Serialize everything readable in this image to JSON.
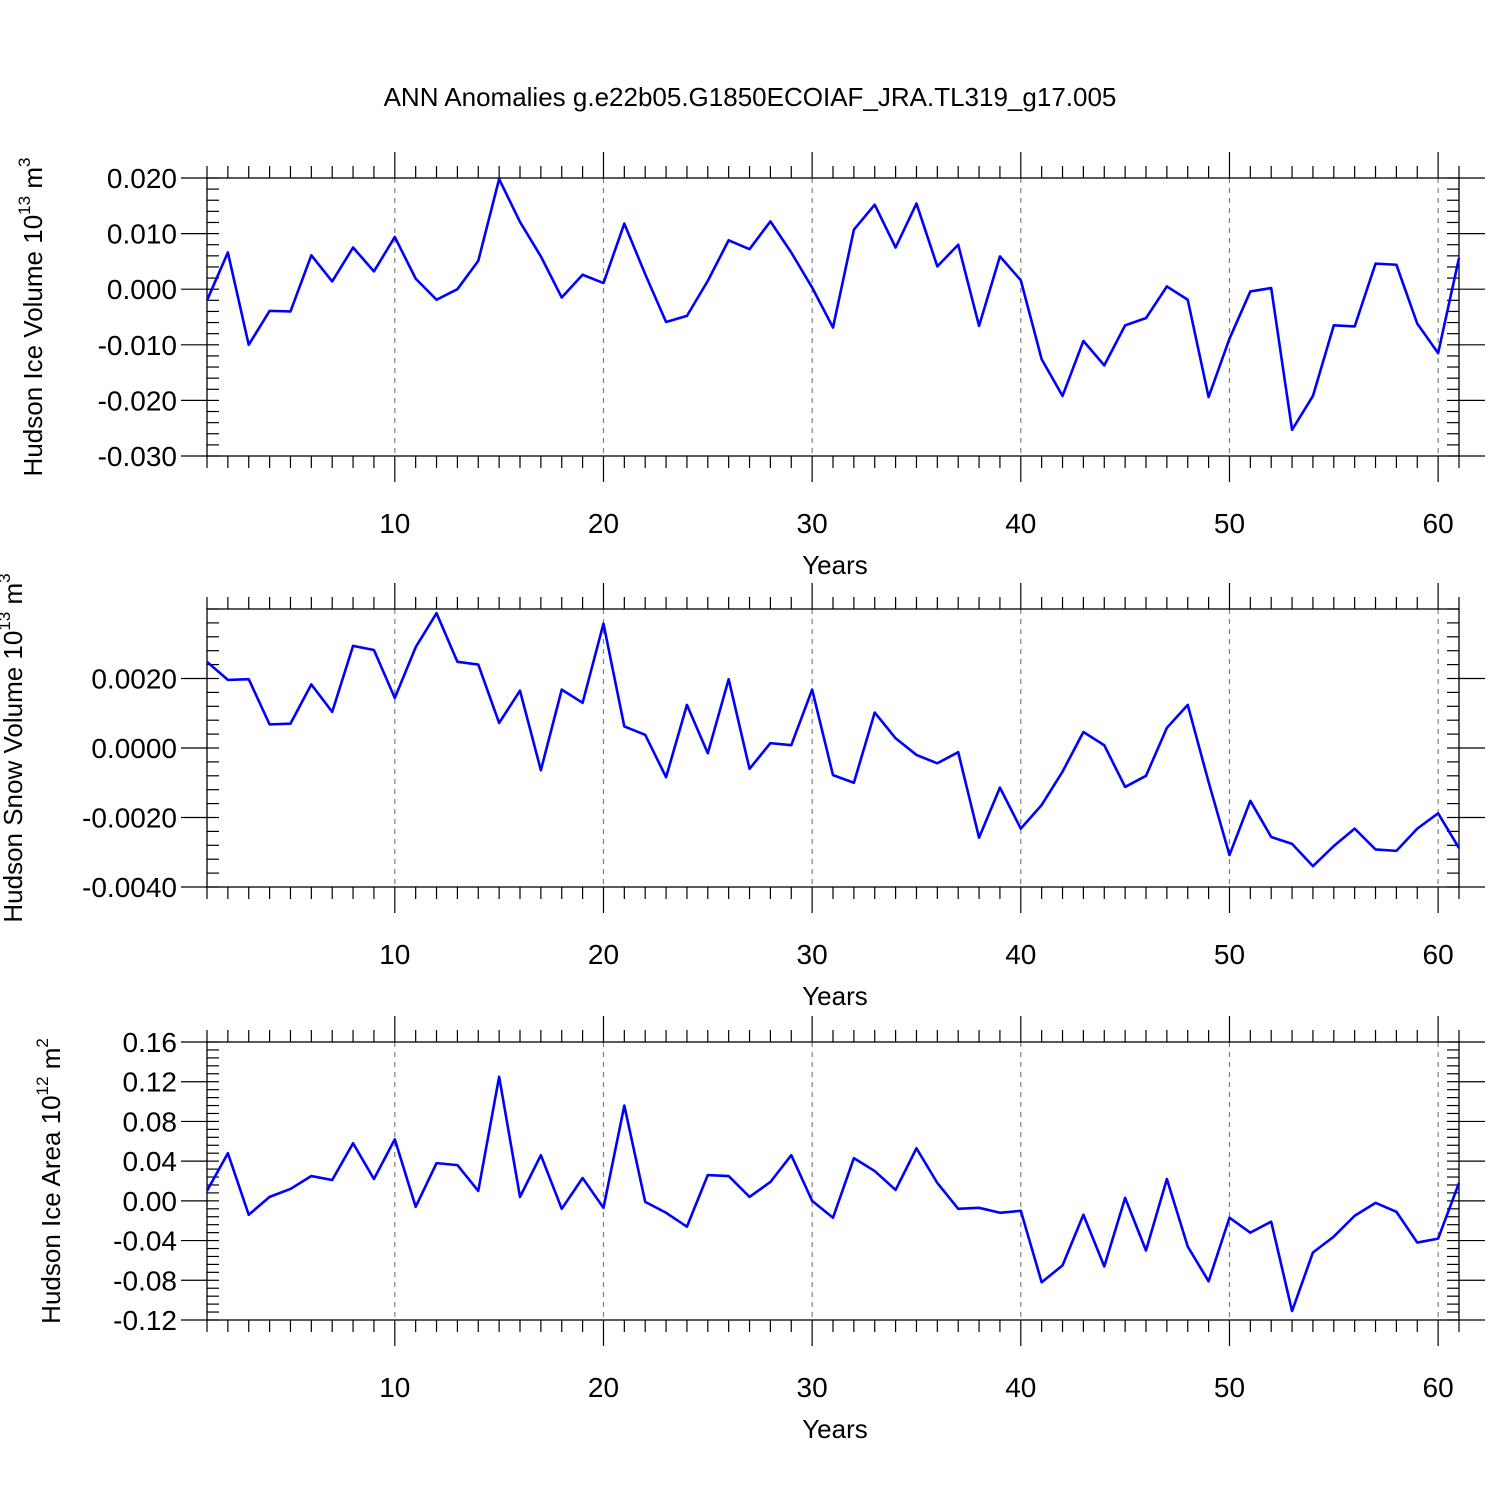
{
  "chart_data": [
    {
      "type": "line",
      "title": "ANN Anomalies g.e22b05.G1850ECOIAF_JRA.TL319_g17.005",
      "xlabel": "Years",
      "ylabel": "Hudson Ice Volume 10",
      "ylabel_exp": "13",
      "ylabel_unit": " m",
      "ylabel_unit_exp": "3",
      "xlim": [
        1,
        61
      ],
      "ylim": [
        -0.03,
        0.02
      ],
      "x_ticks": [
        10,
        20,
        30,
        40,
        50,
        60
      ],
      "x_tick_labels": [
        "10",
        "20",
        "30",
        "40",
        "50",
        "60"
      ],
      "y_ticks": [
        -0.03,
        -0.02,
        -0.01,
        0.0,
        0.01,
        0.02
      ],
      "y_tick_labels": [
        "-0.030",
        "-0.020",
        "-0.010",
        "0.000",
        "0.010",
        "0.020"
      ],
      "y_minor_step": 0.002,
      "grid": "vertical dashed at major x ticks",
      "series": [
        {
          "name": "Hudson Ice Volume",
          "color": "#0000ff",
          "x": [
            1,
            2,
            3,
            4,
            5,
            6,
            7,
            8,
            9,
            10,
            11,
            12,
            13,
            14,
            15,
            16,
            17,
            18,
            19,
            20,
            21,
            22,
            23,
            24,
            25,
            26,
            27,
            28,
            29,
            30,
            31,
            32,
            33,
            34,
            35,
            36,
            37,
            38,
            39,
            40,
            41,
            42,
            43,
            44,
            45,
            46,
            47,
            48,
            49,
            50,
            51,
            52,
            53,
            54,
            55,
            56,
            57,
            58,
            59,
            60,
            61
          ],
          "values": [
            -0.002,
            0.0066,
            -0.01,
            -0.0039,
            -0.004,
            0.0061,
            0.0014,
            0.0075,
            0.0032,
            0.0094,
            0.0019,
            -0.0019,
            0.0,
            0.0051,
            0.0198,
            0.0121,
            0.0059,
            -0.0015,
            0.0026,
            0.0011,
            0.0118,
            0.0027,
            -0.0059,
            -0.0048,
            0.0015,
            0.0088,
            0.0072,
            0.0122,
            0.0066,
            0.0003,
            -0.0069,
            0.0107,
            0.0152,
            0.0075,
            0.0154,
            0.0041,
            0.008,
            -0.0066,
            0.0059,
            0.0016,
            -0.0126,
            -0.0192,
            -0.0093,
            -0.0137,
            -0.0065,
            -0.0052,
            0.0005,
            -0.0019,
            -0.0194,
            -0.0089,
            -0.0004,
            0.0002,
            -0.0253,
            -0.0192,
            -0.0065,
            -0.0067,
            0.0046,
            0.0044,
            -0.0062,
            -0.0115,
            0.0056
          ]
        }
      ]
    },
    {
      "type": "line",
      "title": "",
      "xlabel": "Years",
      "ylabel": "Hudson Snow Volume 10",
      "ylabel_exp": "13",
      "ylabel_unit": " m",
      "ylabel_unit_exp": "3",
      "xlim": [
        1,
        61
      ],
      "ylim": [
        -0.004,
        0.004
      ],
      "x_ticks": [
        10,
        20,
        30,
        40,
        50,
        60
      ],
      "x_tick_labels": [
        "10",
        "20",
        "30",
        "40",
        "50",
        "60"
      ],
      "y_ticks": [
        -0.004,
        -0.002,
        0.0,
        0.002
      ],
      "y_tick_labels": [
        "-0.0040",
        "-0.0020",
        "0.0000",
        "0.0020"
      ],
      "y_minor_step": 0.0004,
      "grid": "vertical dashed at major x ticks",
      "series": [
        {
          "name": "Hudson Snow Volume",
          "color": "#0000ff",
          "x": [
            1,
            2,
            3,
            4,
            5,
            6,
            7,
            8,
            9,
            10,
            11,
            12,
            13,
            14,
            15,
            16,
            17,
            18,
            19,
            20,
            21,
            22,
            23,
            24,
            25,
            26,
            27,
            28,
            29,
            30,
            31,
            32,
            33,
            34,
            35,
            36,
            37,
            38,
            39,
            40,
            41,
            42,
            43,
            44,
            45,
            46,
            47,
            48,
            49,
            50,
            51,
            52,
            53,
            54,
            55,
            56,
            57,
            58,
            59,
            60,
            61
          ],
          "values": [
            0.00248,
            0.00196,
            0.00198,
            0.00068,
            0.0007,
            0.00183,
            0.00104,
            0.00294,
            0.00282,
            0.00144,
            0.0029,
            0.00388,
            0.00248,
            0.0024,
            0.00072,
            0.00165,
            -0.00064,
            0.00168,
            0.0013,
            0.00358,
            0.00062,
            0.00038,
            -0.00084,
            0.00124,
            -0.00015,
            0.00198,
            -0.0006,
            0.00014,
            8e-05,
            0.00168,
            -0.00078,
            -0.001,
            0.00102,
            0.00028,
            -0.0002,
            -0.00044,
            -0.00012,
            -0.00258,
            -0.00114,
            -0.00232,
            -0.00164,
            -0.00068,
            0.00046,
            8e-05,
            -0.00112,
            -0.0008,
            0.00058,
            0.00124,
            -0.00098,
            -0.00308,
            -0.00152,
            -0.00256,
            -0.00276,
            -0.0034,
            -0.00282,
            -0.00232,
            -0.00292,
            -0.00296,
            -0.00232,
            -0.00188,
            -0.00288
          ]
        }
      ]
    },
    {
      "type": "line",
      "title": "",
      "xlabel": "Years",
      "ylabel": "Hudson Ice Area 10",
      "ylabel_exp": "12",
      "ylabel_unit": " m",
      "ylabel_unit_exp": "2",
      "xlim": [
        1,
        61
      ],
      "ylim": [
        -0.12,
        0.16
      ],
      "x_ticks": [
        10,
        20,
        30,
        40,
        50,
        60
      ],
      "x_tick_labels": [
        "10",
        "20",
        "30",
        "40",
        "50",
        "60"
      ],
      "y_ticks": [
        -0.12,
        -0.08,
        -0.04,
        0.0,
        0.04,
        0.08,
        0.12,
        0.16
      ],
      "y_tick_labels": [
        "-0.12",
        "-0.08",
        "-0.04",
        "0.00",
        "0.04",
        "0.08",
        "0.12",
        "0.16"
      ],
      "y_minor_step": 0.008,
      "grid": "vertical dashed at major x ticks",
      "series": [
        {
          "name": "Hudson Ice Area",
          "color": "#0000ff",
          "x": [
            1,
            2,
            3,
            4,
            5,
            6,
            7,
            8,
            9,
            10,
            11,
            12,
            13,
            14,
            15,
            16,
            17,
            18,
            19,
            20,
            21,
            22,
            23,
            24,
            25,
            26,
            27,
            28,
            29,
            30,
            31,
            32,
            33,
            34,
            35,
            36,
            37,
            38,
            39,
            40,
            41,
            42,
            43,
            44,
            45,
            46,
            47,
            48,
            49,
            50,
            51,
            52,
            53,
            54,
            55,
            56,
            57,
            58,
            59,
            60,
            61
          ],
          "values": [
            0.01,
            0.048,
            -0.014,
            0.004,
            0.012,
            0.025,
            0.021,
            0.058,
            0.022,
            0.062,
            -0.006,
            0.038,
            0.036,
            0.01,
            0.125,
            0.004,
            0.046,
            -0.008,
            0.023,
            -0.007,
            0.096,
            -0.001,
            -0.012,
            -0.026,
            0.026,
            0.025,
            0.004,
            0.019,
            0.046,
            0.0,
            -0.017,
            0.043,
            0.03,
            0.011,
            0.053,
            0.018,
            -0.008,
            -0.007,
            -0.012,
            -0.01,
            -0.082,
            -0.065,
            -0.014,
            -0.066,
            0.003,
            -0.05,
            0.022,
            -0.046,
            -0.081,
            -0.017,
            -0.032,
            -0.021,
            -0.111,
            -0.052,
            -0.036,
            -0.015,
            -0.002,
            -0.011,
            -0.042,
            -0.038,
            0.018
          ]
        }
      ]
    }
  ]
}
